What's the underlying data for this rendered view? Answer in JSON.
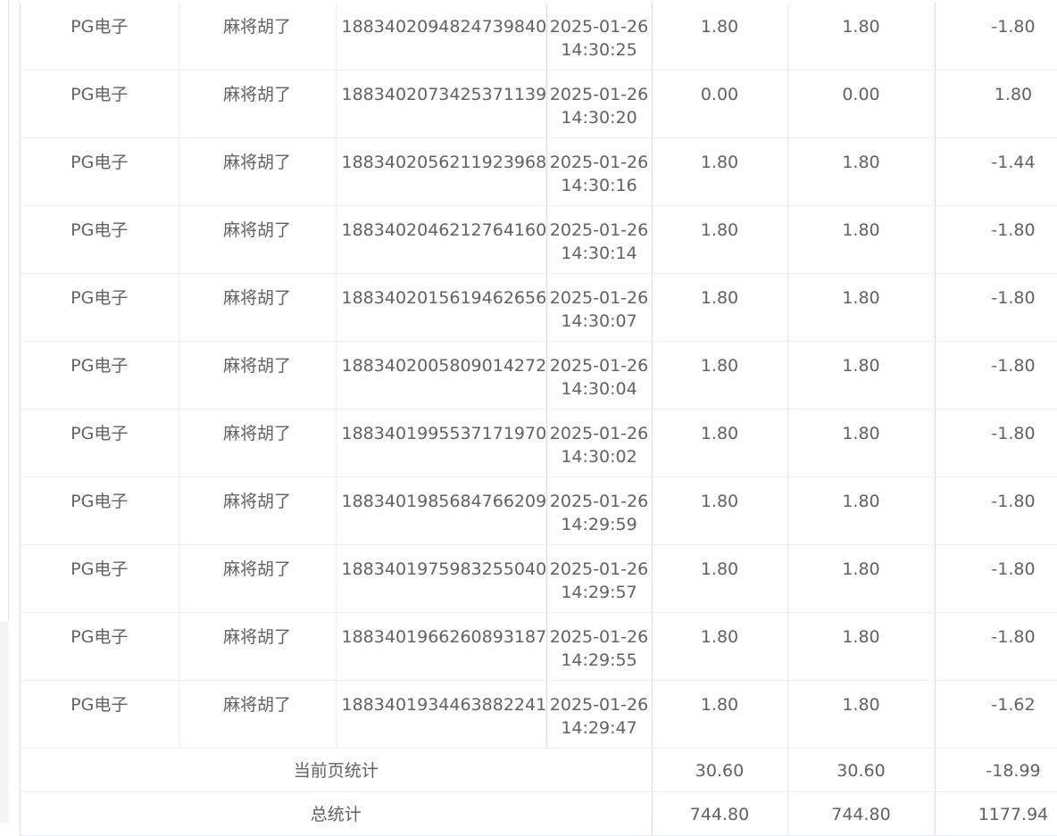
{
  "rows": [
    {
      "platform": "PG电子",
      "game": "麻将胡了",
      "order_id": "1883402094824739840",
      "date": "2025-01-26",
      "time": "14:30:25",
      "bet": "1.80",
      "valid_bet": "1.80",
      "win_loss": "-1.80"
    },
    {
      "platform": "PG电子",
      "game": "麻将胡了",
      "order_id": "1883402073425371139",
      "date": "2025-01-26",
      "time": "14:30:20",
      "bet": "0.00",
      "valid_bet": "0.00",
      "win_loss": "1.80"
    },
    {
      "platform": "PG电子",
      "game": "麻将胡了",
      "order_id": "1883402056211923968",
      "date": "2025-01-26",
      "time": "14:30:16",
      "bet": "1.80",
      "valid_bet": "1.80",
      "win_loss": "-1.44"
    },
    {
      "platform": "PG电子",
      "game": "麻将胡了",
      "order_id": "1883402046212764160",
      "date": "2025-01-26",
      "time": "14:30:14",
      "bet": "1.80",
      "valid_bet": "1.80",
      "win_loss": "-1.80"
    },
    {
      "platform": "PG电子",
      "game": "麻将胡了",
      "order_id": "1883402015619462656",
      "date": "2025-01-26",
      "time": "14:30:07",
      "bet": "1.80",
      "valid_bet": "1.80",
      "win_loss": "-1.80"
    },
    {
      "platform": "PG电子",
      "game": "麻将胡了",
      "order_id": "1883402005809014272",
      "date": "2025-01-26",
      "time": "14:30:04",
      "bet": "1.80",
      "valid_bet": "1.80",
      "win_loss": "-1.80"
    },
    {
      "platform": "PG电子",
      "game": "麻将胡了",
      "order_id": "1883401995537171970",
      "date": "2025-01-26",
      "time": "14:30:02",
      "bet": "1.80",
      "valid_bet": "1.80",
      "win_loss": "-1.80"
    },
    {
      "platform": "PG电子",
      "game": "麻将胡了",
      "order_id": "1883401985684766209",
      "date": "2025-01-26",
      "time": "14:29:59",
      "bet": "1.80",
      "valid_bet": "1.80",
      "win_loss": "-1.80"
    },
    {
      "platform": "PG电子",
      "game": "麻将胡了",
      "order_id": "1883401975983255040",
      "date": "2025-01-26",
      "time": "14:29:57",
      "bet": "1.80",
      "valid_bet": "1.80",
      "win_loss": "-1.80"
    },
    {
      "platform": "PG电子",
      "game": "麻将胡了",
      "order_id": "1883401966260893187",
      "date": "2025-01-26",
      "time": "14:29:55",
      "bet": "1.80",
      "valid_bet": "1.80",
      "win_loss": "-1.80"
    },
    {
      "platform": "PG电子",
      "game": "麻将胡了",
      "order_id": "1883401934463882241",
      "date": "2025-01-26",
      "time": "14:29:47",
      "bet": "1.80",
      "valid_bet": "1.80",
      "win_loss": "-1.62"
    }
  ],
  "summary": {
    "page": {
      "label": "当前页统计",
      "bet": "30.60",
      "valid_bet": "30.60",
      "win_loss": "-18.99"
    },
    "total": {
      "label": "总统计",
      "bet": "744.80",
      "valid_bet": "744.80",
      "win_loss": "1177.94"
    }
  }
}
